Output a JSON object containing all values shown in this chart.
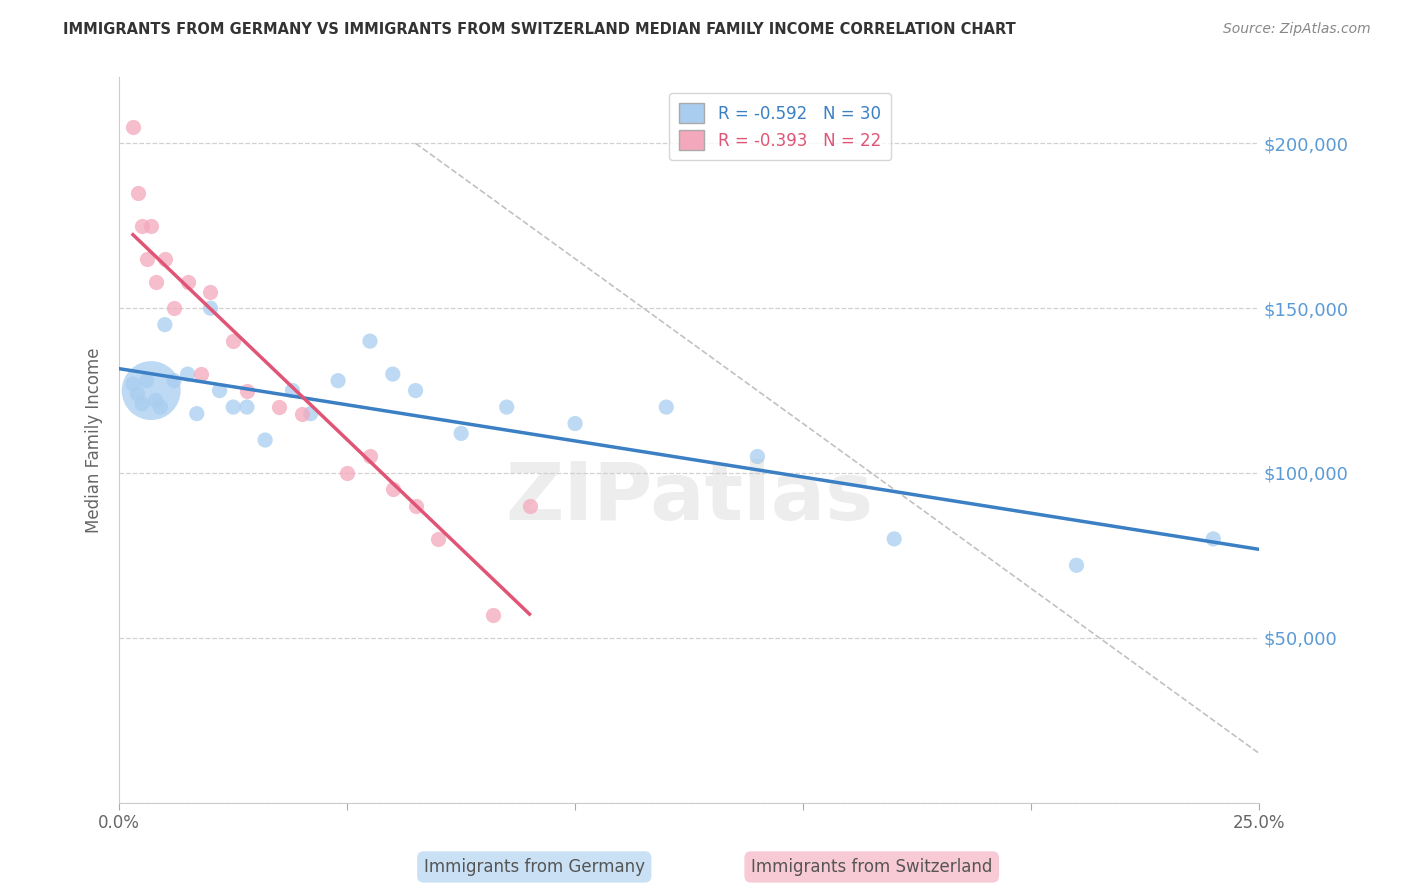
{
  "title": "IMMIGRANTS FROM GERMANY VS IMMIGRANTS FROM SWITZERLAND MEDIAN FAMILY INCOME CORRELATION CHART",
  "source": "Source: ZipAtlas.com",
  "ylabel": "Median Family Income",
  "yticks": [
    0,
    50000,
    100000,
    150000,
    200000
  ],
  "ytick_labels": [
    "",
    "$50,000",
    "$100,000",
    "$150,000",
    "$200,000"
  ],
  "xlim": [
    0.0,
    0.25
  ],
  "ylim": [
    0,
    220000
  ],
  "legend_r_germany": "-0.592",
  "legend_n_germany": "30",
  "legend_r_switzerland": "-0.393",
  "legend_n_switzerland": "22",
  "germany_color": "#A8CDEF",
  "switzerland_color": "#F4A8BC",
  "germany_line_color": "#3B7FC4",
  "switzerland_line_color": "#E05575",
  "watermark": "ZIPatlas",
  "germany_x": [
    0.003,
    0.004,
    0.005,
    0.006,
    0.007,
    0.008,
    0.009,
    0.01,
    0.012,
    0.015,
    0.017,
    0.02,
    0.022,
    0.025,
    0.028,
    0.032,
    0.038,
    0.042,
    0.048,
    0.055,
    0.06,
    0.065,
    0.075,
    0.085,
    0.1,
    0.12,
    0.14,
    0.17,
    0.21,
    0.24
  ],
  "germany_y": [
    127000,
    124000,
    121000,
    128000,
    125000,
    122000,
    120000,
    145000,
    128000,
    130000,
    118000,
    150000,
    125000,
    120000,
    120000,
    110000,
    125000,
    118000,
    128000,
    140000,
    130000,
    125000,
    112000,
    120000,
    115000,
    120000,
    105000,
    80000,
    72000,
    80000
  ],
  "germany_size_base": 120,
  "germany_large_idx": 4,
  "germany_large_size": 1800,
  "switzerland_x": [
    0.003,
    0.004,
    0.005,
    0.006,
    0.007,
    0.008,
    0.01,
    0.012,
    0.015,
    0.018,
    0.02,
    0.025,
    0.028,
    0.035,
    0.04,
    0.05,
    0.055,
    0.06,
    0.065,
    0.07,
    0.082,
    0.09
  ],
  "switzerland_y": [
    205000,
    185000,
    175000,
    165000,
    175000,
    158000,
    165000,
    150000,
    158000,
    130000,
    155000,
    140000,
    125000,
    120000,
    118000,
    100000,
    105000,
    95000,
    90000,
    80000,
    57000,
    90000
  ],
  "dashed_line_x": [
    0.065,
    0.25
  ],
  "dashed_line_y": [
    200000,
    15000
  ],
  "background_color": "#FFFFFF"
}
